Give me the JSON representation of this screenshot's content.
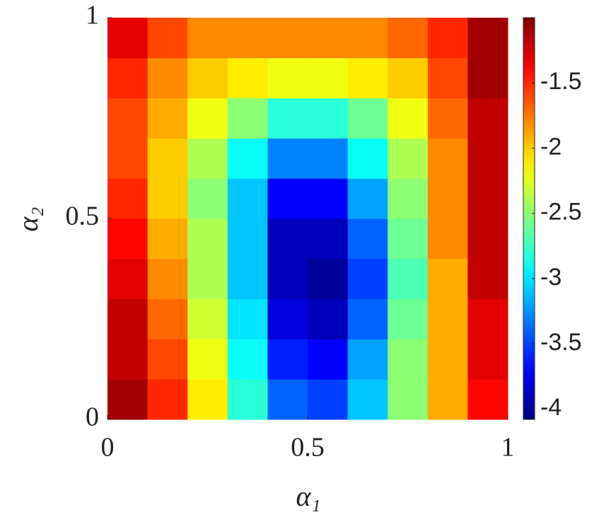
{
  "chart_data": {
    "type": "heatmap",
    "xlabel": "α₁",
    "ylabel": "α₂",
    "x": [
      0.05,
      0.15,
      0.25,
      0.35,
      0.45,
      0.55,
      0.65,
      0.75,
      0.85,
      0.95
    ],
    "y": [
      0.05,
      0.15,
      0.25,
      0.35,
      0.45,
      0.55,
      0.65,
      0.75,
      0.85,
      0.95
    ],
    "z": [
      [
        -1.1,
        -1.5,
        -2.1,
        -2.8,
        -3.4,
        -3.5,
        -3.1,
        -2.5,
        -1.9,
        -1.4
      ],
      [
        -1.2,
        -1.6,
        -2.2,
        -2.9,
        -3.6,
        -3.7,
        -3.2,
        -2.5,
        -1.9,
        -1.3
      ],
      [
        -1.2,
        -1.7,
        -2.3,
        -3.0,
        -3.8,
        -3.9,
        -3.4,
        -2.6,
        -1.9,
        -1.3
      ],
      [
        -1.3,
        -1.8,
        -2.4,
        -3.1,
        -3.9,
        -4.0,
        -3.5,
        -2.7,
        -1.9,
        -1.2
      ],
      [
        -1.4,
        -1.9,
        -2.4,
        -3.1,
        -3.9,
        -3.9,
        -3.4,
        -2.6,
        -1.8,
        -1.2
      ],
      [
        -1.5,
        -2.0,
        -2.5,
        -3.1,
        -3.7,
        -3.7,
        -3.2,
        -2.5,
        -1.8,
        -1.2
      ],
      [
        -1.6,
        -2.0,
        -2.4,
        -2.9,
        -3.3,
        -3.3,
        -2.9,
        -2.4,
        -1.8,
        -1.2
      ],
      [
        -1.6,
        -1.9,
        -2.2,
        -2.5,
        -2.8,
        -2.8,
        -2.6,
        -2.2,
        -1.7,
        -1.2
      ],
      [
        -1.5,
        -1.8,
        -2.0,
        -2.1,
        -2.2,
        -2.2,
        -2.1,
        -2.0,
        -1.6,
        -1.1
      ],
      [
        -1.3,
        -1.6,
        -1.8,
        -1.8,
        -1.8,
        -1.8,
        -1.8,
        -1.7,
        -1.5,
        -1.1
      ]
    ],
    "xlim": [
      0,
      1
    ],
    "ylim": [
      0,
      1
    ],
    "xticks": [
      0,
      0.5,
      1
    ],
    "yticks": [
      0,
      0.5,
      1
    ],
    "colormap": "jet",
    "clim": [
      -4.08,
      -1.0
    ],
    "cticks": [
      -4,
      -3.5,
      -3,
      -2.5,
      -2,
      -1.5
    ]
  }
}
